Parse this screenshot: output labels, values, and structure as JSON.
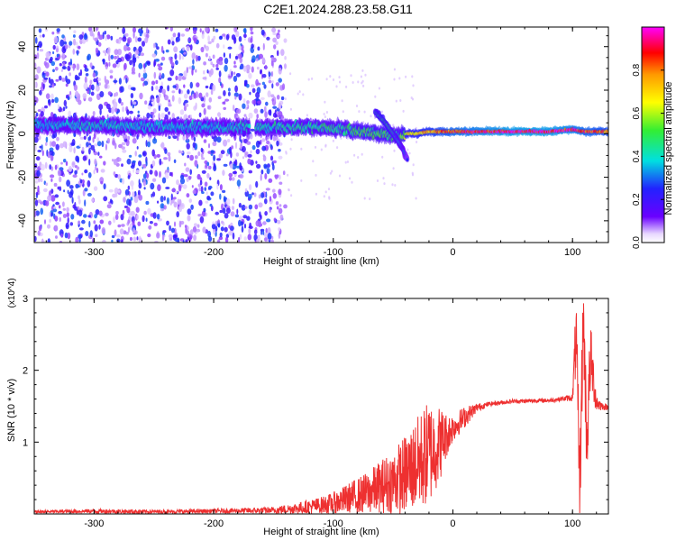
{
  "title": "C2E1.2024.288.23.58.G11",
  "colors": {
    "snr_line": "#ee3030",
    "spectral_dots": "#7a22e6",
    "axis": "#000000"
  },
  "chart_data": [
    {
      "type": "heatmap",
      "xlabel": "Height of straight line (km)",
      "ylabel": "Frequency (Hz)",
      "xlim": [
        -350,
        130
      ],
      "ylim": [
        -50,
        49
      ],
      "x_ticks": [
        -300,
        -200,
        -100,
        0,
        100
      ],
      "x_tick_labels": [
        "-300",
        "-200",
        "-100",
        "0",
        "100"
      ],
      "y_ticks": [
        -40,
        -20,
        0,
        20,
        40
      ],
      "y_tick_labels": [
        "-40",
        "-20",
        "0",
        "20",
        "40"
      ],
      "grid": false,
      "colorbar": {
        "label": "Normalized spectral amplitude",
        "range": [
          0.0,
          1.0
        ],
        "ticks": [
          0.0,
          0.2,
          0.4,
          0.6,
          0.8
        ],
        "tick_labels": [
          "0.0",
          "0.2",
          "0.4",
          "0.6",
          "0.8"
        ],
        "colormap": [
          "#ffffff",
          "#6a00ff",
          "#2222ff",
          "#00e0e0",
          "#33ee33",
          "#ffff00",
          "#ff9900",
          "#ff0000",
          "#ff00ff"
        ]
      },
      "ridge": {
        "x": [
          -350,
          -300,
          -250,
          -200,
          -170,
          -140,
          -110,
          -90,
          -75,
          -60,
          -45,
          -38,
          -30,
          -20,
          -10,
          0,
          20,
          50,
          80,
          100,
          110,
          130
        ],
        "frequency": [
          4,
          4,
          3,
          3,
          3,
          3,
          3,
          2,
          1,
          0,
          -1,
          0,
          0,
          1,
          1,
          1,
          1,
          1,
          1,
          2,
          1,
          1
        ],
        "amplitude": [
          0.35,
          0.4,
          0.38,
          0.36,
          0.4,
          0.42,
          0.45,
          0.45,
          0.5,
          0.5,
          0.45,
          0.65,
          0.7,
          0.75,
          0.8,
          0.85,
          0.9,
          0.95,
          0.95,
          0.9,
          0.85,
          0.8
        ]
      },
      "branch": {
        "x": [
          -65,
          -58,
          -50,
          -43,
          -38
        ],
        "frequency": [
          10,
          6,
          0,
          -6,
          -12
        ],
        "amplitude": [
          0.45,
          0.5,
          0.45,
          0.35,
          0.25
        ]
      },
      "noise_region_x": [
        -350,
        -140
      ]
    },
    {
      "type": "line",
      "xlabel": "Height of straight line (km)",
      "ylabel": "SNR (10 * v/v)",
      "y_multiplier": "(x10^4)",
      "xlim": [
        -350,
        130
      ],
      "ylim": [
        0,
        3
      ],
      "x_ticks": [
        -300,
        -200,
        -100,
        0,
        100
      ],
      "x_tick_labels": [
        "-300",
        "-200",
        "-100",
        "0",
        "100"
      ],
      "y_ticks": [
        1,
        2,
        3
      ],
      "y_tick_labels": [
        "1",
        "2",
        "3"
      ],
      "grid": false,
      "series": [
        {
          "x": [
            -350,
            -300,
            -250,
            -200,
            -150,
            -130,
            -110,
            -100,
            -90,
            -80,
            -70,
            -60,
            -50,
            -40,
            -30,
            -20,
            -10,
            -5,
            0,
            10,
            20,
            30,
            40,
            50,
            60,
            70,
            80,
            90,
            100,
            103,
            106,
            109,
            112,
            115,
            120,
            125,
            130
          ],
          "y": [
            0.03,
            0.04,
            0.03,
            0.04,
            0.05,
            0.08,
            0.12,
            0.15,
            0.2,
            0.25,
            0.3,
            0.38,
            0.45,
            0.55,
            0.7,
            0.85,
            1.0,
            1.1,
            1.2,
            1.35,
            1.48,
            1.53,
            1.55,
            1.57,
            1.57,
            1.58,
            1.58,
            1.6,
            1.62,
            2.5,
            0.3,
            2.8,
            1.0,
            2.2,
            1.55,
            1.5,
            1.48
          ],
          "noise_amplitude": [
            0.02,
            0.03,
            0.03,
            0.03,
            0.05,
            0.08,
            0.12,
            0.15,
            0.2,
            0.25,
            0.3,
            0.38,
            0.45,
            0.55,
            0.65,
            0.75,
            0.5,
            0.3,
            0.2,
            0.15,
            0.06,
            0.03,
            0.03,
            0.03,
            0.03,
            0.03,
            0.03,
            0.03,
            0.05,
            0.6,
            0.6,
            0.6,
            0.6,
            0.5,
            0.15,
            0.05,
            0.04
          ]
        }
      ]
    }
  ]
}
